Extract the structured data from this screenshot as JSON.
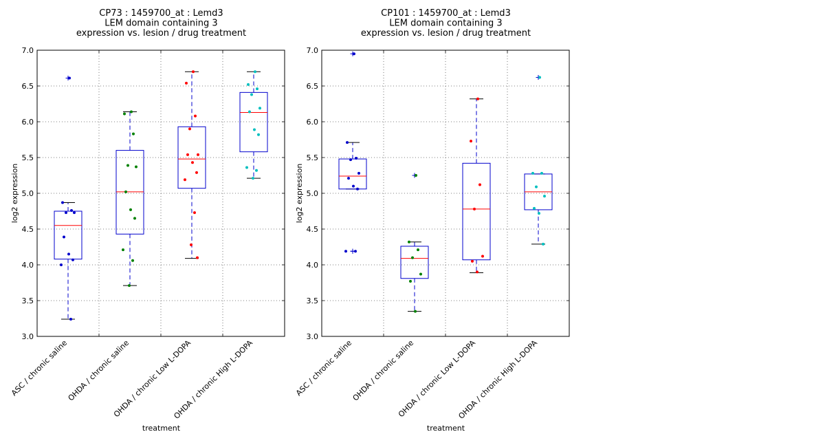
{
  "chart_data": [
    {
      "type": "box",
      "title_lines": [
        "CP73 : 1459700_at : Lemd3",
        "LEM domain containing 3",
        "expression vs. lesion / drug treatment"
      ],
      "xlabel": "treatment",
      "ylabel": "log2 expression",
      "ylim": [
        3.0,
        7.0
      ],
      "yticks": [
        "3.0",
        "3.5",
        "4.0",
        "4.5",
        "5.0",
        "5.5",
        "6.0",
        "6.5",
        "7.0"
      ],
      "grid": true,
      "categories": [
        "ASC / chronic saline",
        "OHDA / chronic saline",
        "OHDA / chronic Low L-DOPA",
        "OHDA / chronic High L-DOPA"
      ],
      "colors": [
        "#0000cc",
        "#008000",
        "#ff0000",
        "#00bfbf"
      ],
      "boxes": [
        {
          "q1": 4.08,
          "median": 4.55,
          "q3": 4.75,
          "whisker_low": 3.24,
          "whisker_high": 4.87,
          "outliers": [
            6.61
          ]
        },
        {
          "q1": 4.43,
          "median": 5.02,
          "q3": 5.6,
          "whisker_low": 3.71,
          "whisker_high": 6.14,
          "outliers": []
        },
        {
          "q1": 5.07,
          "median": 5.48,
          "q3": 5.93,
          "whisker_low": 4.09,
          "whisker_high": 6.7,
          "outliers": []
        },
        {
          "q1": 5.58,
          "median": 6.13,
          "q3": 6.41,
          "whisker_low": 5.21,
          "whisker_high": 6.7,
          "outliers": []
        }
      ],
      "points": [
        [
          6.61,
          4.87,
          4.76,
          4.73,
          4.73,
          4.39,
          4.15,
          4.07,
          4.0,
          3.24
        ],
        [
          6.14,
          6.11,
          5.83,
          5.39,
          5.37,
          5.02,
          4.77,
          4.65,
          4.21,
          4.06,
          3.71
        ],
        [
          6.7,
          6.54,
          6.08,
          5.9,
          5.54,
          5.54,
          5.43,
          5.29,
          5.19,
          4.73,
          4.28,
          4.1
        ],
        [
          6.7,
          6.52,
          6.46,
          6.38,
          6.19,
          6.14,
          5.89,
          5.82,
          5.36,
          5.32,
          5.21
        ]
      ]
    },
    {
      "type": "box",
      "title_lines": [
        "CP101 : 1459700_at : Lemd3",
        "LEM domain containing 3",
        "expression vs. lesion / drug treatment"
      ],
      "xlabel": "treatment",
      "ylabel": "log2 expression",
      "ylim": [
        3.0,
        7.0
      ],
      "yticks": [
        "3.0",
        "3.5",
        "4.0",
        "4.5",
        "5.0",
        "5.5",
        "6.0",
        "6.5",
        "7.0"
      ],
      "grid": true,
      "categories": [
        "ASC / chronic saline",
        "OHDA / chronic saline",
        "OHDA / chronic Low L-DOPA",
        "OHDA / chronic High L-DOPA"
      ],
      "colors": [
        "#0000cc",
        "#008000",
        "#ff0000",
        "#00bfbf"
      ],
      "boxes": [
        {
          "q1": 5.06,
          "median": 5.24,
          "q3": 5.48,
          "whisker_low": 5.06,
          "whisker_high": 5.71,
          "outliers": [
            6.95,
            4.19,
            4.19
          ]
        },
        {
          "q1": 3.81,
          "median": 4.09,
          "q3": 4.26,
          "whisker_low": 3.35,
          "whisker_high": 4.32,
          "outliers": [
            5.25
          ]
        },
        {
          "q1": 4.07,
          "median": 4.78,
          "q3": 5.42,
          "whisker_low": 3.89,
          "whisker_high": 6.32,
          "outliers": []
        },
        {
          "q1": 4.77,
          "median": 5.02,
          "q3": 5.27,
          "whisker_low": 4.29,
          "whisker_high": 5.27,
          "outliers": [
            6.62
          ]
        }
      ],
      "points": [
        [
          6.95,
          5.71,
          5.49,
          5.47,
          5.28,
          5.21,
          5.1,
          5.06,
          4.19,
          4.19
        ],
        [
          5.25,
          4.32,
          4.21,
          4.1,
          3.87,
          3.77,
          3.35
        ],
        [
          6.32,
          5.73,
          5.12,
          4.78,
          4.12,
          4.05,
          3.9
        ],
        [
          6.62,
          5.28,
          5.28,
          5.09,
          4.96,
          4.79,
          4.72,
          4.29
        ]
      ]
    }
  ]
}
